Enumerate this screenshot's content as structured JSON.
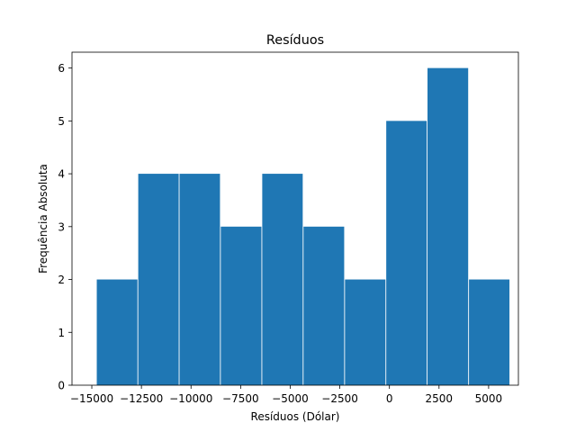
{
  "chart_data": {
    "type": "bar",
    "title": "Resíduos",
    "xlabel": "Resíduos (Dólar)",
    "ylabel": "Frequência Absoluta",
    "bar_color": "#1f77b4",
    "xlim": [
      -15999,
      6501
    ],
    "ylim": [
      0,
      6.3
    ],
    "xticks": [
      -15000,
      -12500,
      -10000,
      -7500,
      -5000,
      -2500,
      0,
      2500,
      5000
    ],
    "xtick_labels": [
      "−15000",
      "−12500",
      "−10000",
      "−7500",
      "−5000",
      "−2500",
      "0",
      "2500",
      "5000"
    ],
    "yticks": [
      0,
      1,
      2,
      3,
      4,
      5,
      6
    ],
    "ytick_labels": [
      "0",
      "1",
      "2",
      "3",
      "4",
      "5",
      "6"
    ],
    "bins": [
      {
        "x0": -14750,
        "x1": -12700,
        "value": 2
      },
      {
        "x0": -12660,
        "x1": -10620,
        "value": 4
      },
      {
        "x0": -10580,
        "x1": -8540,
        "value": 4
      },
      {
        "x0": -8500,
        "x1": -6450,
        "value": 3
      },
      {
        "x0": -6410,
        "x1": -4370,
        "value": 4
      },
      {
        "x0": -4330,
        "x1": -2280,
        "value": 3
      },
      {
        "x0": -2240,
        "x1": -200,
        "value": 2
      },
      {
        "x0": -160,
        "x1": 1880,
        "value": 5
      },
      {
        "x0": 1920,
        "x1": 3970,
        "value": 6
      },
      {
        "x0": 4010,
        "x1": 6050,
        "value": 2
      }
    ],
    "grid": false,
    "legend": false
  }
}
